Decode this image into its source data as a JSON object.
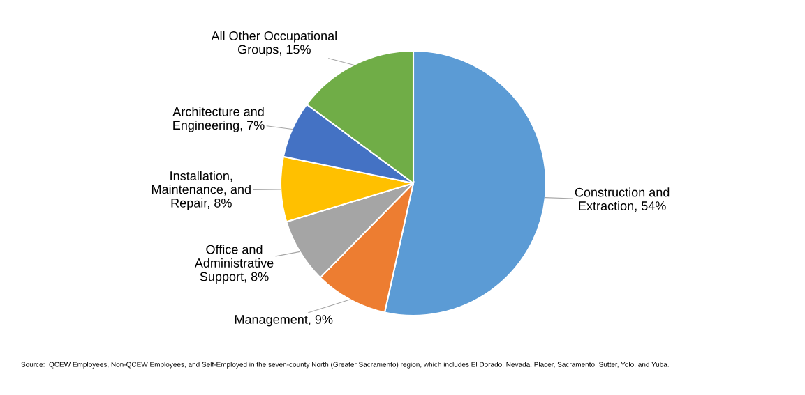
{
  "chart_data": {
    "type": "pie",
    "categories": [
      "Construction and\nExtraction",
      "Management",
      "Office and\nAdministrative\nSupport",
      "Installation,\nMaintenance, and\nRepair",
      "Architecture and\nEngineering",
      "All Other Occupational\nGroups"
    ],
    "values": [
      54,
      9,
      8,
      8,
      7,
      15
    ],
    "value_labels": [
      "54%",
      "9%",
      "8%",
      "8%",
      "7%",
      "15%"
    ],
    "colors": [
      "#5b9bd5",
      "#ed7d31",
      "#a5a5a5",
      "#ffc000",
      "#4472c4",
      "#70ad47"
    ],
    "annotations": [
      "Source:  QCEW Employees, Non-QCEW Employees, and Self-Employed in the seven-county North (Greater Sacramento) region, which includes El Dorado, Nevada, Placer, Sacramento, Sutter, Yolo, and Yuba."
    ]
  }
}
